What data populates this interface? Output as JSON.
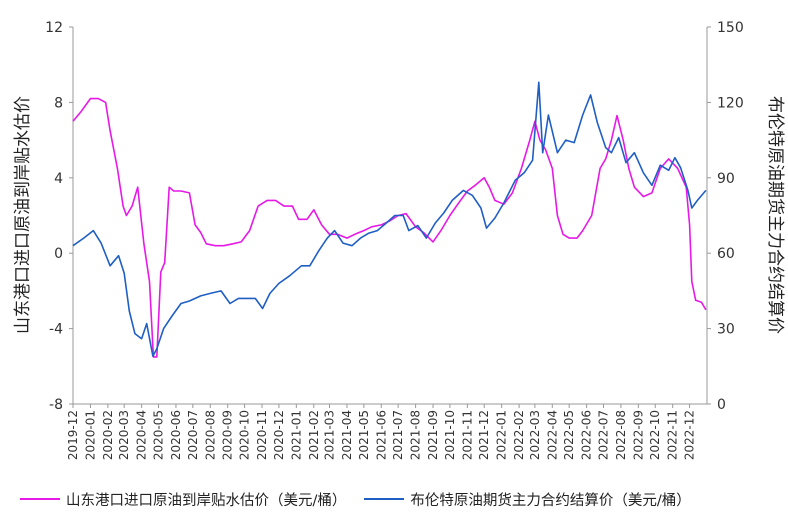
{
  "chart_data": {
    "type": "line",
    "title": "",
    "y_left": {
      "label": "山东港口进口原油到岸贴水估价",
      "ticks": [
        "12",
        "8",
        "4",
        "0",
        "-4",
        "-8"
      ],
      "range": [
        -8,
        12
      ]
    },
    "y_right": {
      "label": "布伦特原油期货主力合约结算价",
      "ticks": [
        "150",
        "120",
        "90",
        "60",
        "30",
        "0"
      ],
      "range": [
        0,
        150
      ]
    },
    "x_ticks": [
      "2019-12",
      "2020-01",
      "2020-02",
      "2020-03",
      "2020-04",
      "2020-05",
      "2020-06",
      "2020-07",
      "2020-08",
      "2020-09",
      "2020-10",
      "2020-11",
      "2020-12",
      "2021-01",
      "2021-02",
      "2021-03",
      "2021-04",
      "2021-05",
      "2021-06",
      "2021-07",
      "2021-08",
      "2021-09",
      "2021-10",
      "2021-11",
      "2021-12",
      "2022-01",
      "2022-02",
      "2022-03",
      "2022-04",
      "2022-05",
      "2022-06",
      "2022-07",
      "2022-08",
      "2022-09",
      "2022-10",
      "2022-11",
      "2022-12"
    ],
    "grid": false,
    "legend_position": "bottom",
    "series": [
      {
        "name": "山东港口进口原油到岸贴水估价（美元/桶）",
        "axis": "left",
        "color": "#e619e6",
        "points": [
          [
            "2019-12-01",
            7.0
          ],
          [
            "2019-12-15",
            7.5
          ],
          [
            "2020-01-01",
            8.2
          ],
          [
            "2020-01-15",
            8.2
          ],
          [
            "2020-01-28",
            8.0
          ],
          [
            "2020-02-05",
            6.5
          ],
          [
            "2020-02-18",
            4.5
          ],
          [
            "2020-02-28",
            2.5
          ],
          [
            "2020-03-05",
            2.0
          ],
          [
            "2020-03-15",
            2.5
          ],
          [
            "2020-03-25",
            3.5
          ],
          [
            "2020-04-05",
            0.5
          ],
          [
            "2020-04-15",
            -1.5
          ],
          [
            "2020-04-22",
            -5.5
          ],
          [
            "2020-04-28",
            -5.5
          ],
          [
            "2020-05-05",
            -1.0
          ],
          [
            "2020-05-12",
            -0.5
          ],
          [
            "2020-05-20",
            3.5
          ],
          [
            "2020-05-28",
            3.3
          ],
          [
            "2020-06-10",
            3.3
          ],
          [
            "2020-06-25",
            3.2
          ],
          [
            "2020-07-05",
            1.5
          ],
          [
            "2020-07-15",
            1.1
          ],
          [
            "2020-07-25",
            0.5
          ],
          [
            "2020-08-10",
            0.4
          ],
          [
            "2020-08-25",
            0.4
          ],
          [
            "2020-09-10",
            0.5
          ],
          [
            "2020-09-25",
            0.6
          ],
          [
            "2020-10-10",
            1.2
          ],
          [
            "2020-10-25",
            2.5
          ],
          [
            "2020-11-10",
            2.8
          ],
          [
            "2020-11-25",
            2.8
          ],
          [
            "2020-12-10",
            2.5
          ],
          [
            "2020-12-25",
            2.5
          ],
          [
            "2021-01-05",
            1.8
          ],
          [
            "2021-01-20",
            1.8
          ],
          [
            "2021-02-01",
            2.3
          ],
          [
            "2021-02-15",
            1.5
          ],
          [
            "2021-03-01",
            1.0
          ],
          [
            "2021-03-15",
            1.0
          ],
          [
            "2021-04-01",
            0.8
          ],
          [
            "2021-04-15",
            1.0
          ],
          [
            "2021-05-01",
            1.2
          ],
          [
            "2021-05-15",
            1.4
          ],
          [
            "2021-06-01",
            1.5
          ],
          [
            "2021-06-15",
            1.7
          ],
          [
            "2021-07-01",
            2.0
          ],
          [
            "2021-07-15",
            2.1
          ],
          [
            "2021-08-01",
            1.4
          ],
          [
            "2021-08-15",
            1.1
          ],
          [
            "2021-09-01",
            0.6
          ],
          [
            "2021-09-15",
            1.2
          ],
          [
            "2021-10-01",
            2.0
          ],
          [
            "2021-10-15",
            2.6
          ],
          [
            "2021-11-01",
            3.3
          ],
          [
            "2021-11-15",
            3.6
          ],
          [
            "2021-12-01",
            4.0
          ],
          [
            "2021-12-10",
            3.5
          ],
          [
            "2021-12-20",
            2.8
          ],
          [
            "2022-01-05",
            2.6
          ],
          [
            "2022-01-20",
            3.2
          ],
          [
            "2022-02-05",
            4.5
          ],
          [
            "2022-02-20",
            6.0
          ],
          [
            "2022-03-01",
            7.0
          ],
          [
            "2022-03-10",
            6.0
          ],
          [
            "2022-03-20",
            5.5
          ],
          [
            "2022-04-01",
            4.5
          ],
          [
            "2022-04-10",
            2.0
          ],
          [
            "2022-04-20",
            1.0
          ],
          [
            "2022-05-01",
            0.8
          ],
          [
            "2022-05-15",
            0.8
          ],
          [
            "2022-05-25",
            1.2
          ],
          [
            "2022-06-10",
            2.0
          ],
          [
            "2022-06-25",
            4.5
          ],
          [
            "2022-07-05",
            5.0
          ],
          [
            "2022-07-15",
            6.0
          ],
          [
            "2022-07-25",
            7.3
          ],
          [
            "2022-08-05",
            6.0
          ],
          [
            "2022-08-15",
            4.5
          ],
          [
            "2022-08-25",
            3.5
          ],
          [
            "2022-09-10",
            3.0
          ],
          [
            "2022-09-25",
            3.2
          ],
          [
            "2022-10-10",
            4.5
          ],
          [
            "2022-10-25",
            5.0
          ],
          [
            "2022-11-10",
            4.5
          ],
          [
            "2022-11-25",
            3.5
          ],
          [
            "2022-12-01",
            1.5
          ],
          [
            "2022-12-05",
            -1.5
          ],
          [
            "2022-12-12",
            -2.5
          ],
          [
            "2022-12-22",
            -2.6
          ],
          [
            "2022-12-30",
            -3.0
          ]
        ]
      },
      {
        "name": "布伦特原油期货主力合约结算价（美元/桶）",
        "axis": "right",
        "color": "#1f5fc4",
        "points": [
          [
            "2019-12-01",
            63
          ],
          [
            "2019-12-20",
            66
          ],
          [
            "2020-01-06",
            69
          ],
          [
            "2020-01-20",
            64
          ],
          [
            "2020-02-05",
            55
          ],
          [
            "2020-02-20",
            59
          ],
          [
            "2020-03-01",
            52
          ],
          [
            "2020-03-10",
            37
          ],
          [
            "2020-03-20",
            28
          ],
          [
            "2020-04-01",
            26
          ],
          [
            "2020-04-10",
            32
          ],
          [
            "2020-04-21",
            19
          ],
          [
            "2020-04-28",
            22
          ],
          [
            "2020-05-10",
            30
          ],
          [
            "2020-05-25",
            35
          ],
          [
            "2020-06-10",
            40
          ],
          [
            "2020-06-25",
            41
          ],
          [
            "2020-07-15",
            43
          ],
          [
            "2020-08-01",
            44
          ],
          [
            "2020-08-20",
            45
          ],
          [
            "2020-09-05",
            40
          ],
          [
            "2020-09-20",
            42
          ],
          [
            "2020-10-05",
            42
          ],
          [
            "2020-10-20",
            42
          ],
          [
            "2020-11-02",
            38
          ],
          [
            "2020-11-15",
            44
          ],
          [
            "2020-12-01",
            48
          ],
          [
            "2020-12-20",
            51
          ],
          [
            "2021-01-10",
            55
          ],
          [
            "2021-01-25",
            55
          ],
          [
            "2021-02-10",
            61
          ],
          [
            "2021-02-25",
            66
          ],
          [
            "2021-03-10",
            69
          ],
          [
            "2021-03-25",
            64
          ],
          [
            "2021-04-10",
            63
          ],
          [
            "2021-04-25",
            66
          ],
          [
            "2021-05-10",
            68
          ],
          [
            "2021-05-25",
            69
          ],
          [
            "2021-06-10",
            72
          ],
          [
            "2021-06-25",
            75
          ],
          [
            "2021-07-10",
            75
          ],
          [
            "2021-07-20",
            69
          ],
          [
            "2021-08-05",
            71
          ],
          [
            "2021-08-20",
            66
          ],
          [
            "2021-09-05",
            72
          ],
          [
            "2021-09-20",
            76
          ],
          [
            "2021-10-05",
            81
          ],
          [
            "2021-10-25",
            85
          ],
          [
            "2021-11-10",
            83
          ],
          [
            "2021-11-25",
            78
          ],
          [
            "2021-12-05",
            70
          ],
          [
            "2021-12-20",
            74
          ],
          [
            "2022-01-05",
            80
          ],
          [
            "2022-01-25",
            89
          ],
          [
            "2022-02-10",
            92
          ],
          [
            "2022-02-25",
            97
          ],
          [
            "2022-03-08",
            128
          ],
          [
            "2022-03-15",
            100
          ],
          [
            "2022-03-25",
            115
          ],
          [
            "2022-04-10",
            100
          ],
          [
            "2022-04-25",
            105
          ],
          [
            "2022-05-10",
            104
          ],
          [
            "2022-05-25",
            115
          ],
          [
            "2022-06-08",
            123
          ],
          [
            "2022-06-20",
            112
          ],
          [
            "2022-07-05",
            102
          ],
          [
            "2022-07-15",
            100
          ],
          [
            "2022-07-28",
            106
          ],
          [
            "2022-08-10",
            96
          ],
          [
            "2022-08-25",
            100
          ],
          [
            "2022-09-10",
            92
          ],
          [
            "2022-09-25",
            87
          ],
          [
            "2022-10-10",
            95
          ],
          [
            "2022-10-25",
            93
          ],
          [
            "2022-11-05",
            98
          ],
          [
            "2022-11-15",
            94
          ],
          [
            "2022-11-28",
            85
          ],
          [
            "2022-12-05",
            78
          ],
          [
            "2022-12-15",
            81
          ],
          [
            "2022-12-30",
            85
          ]
        ]
      }
    ]
  }
}
